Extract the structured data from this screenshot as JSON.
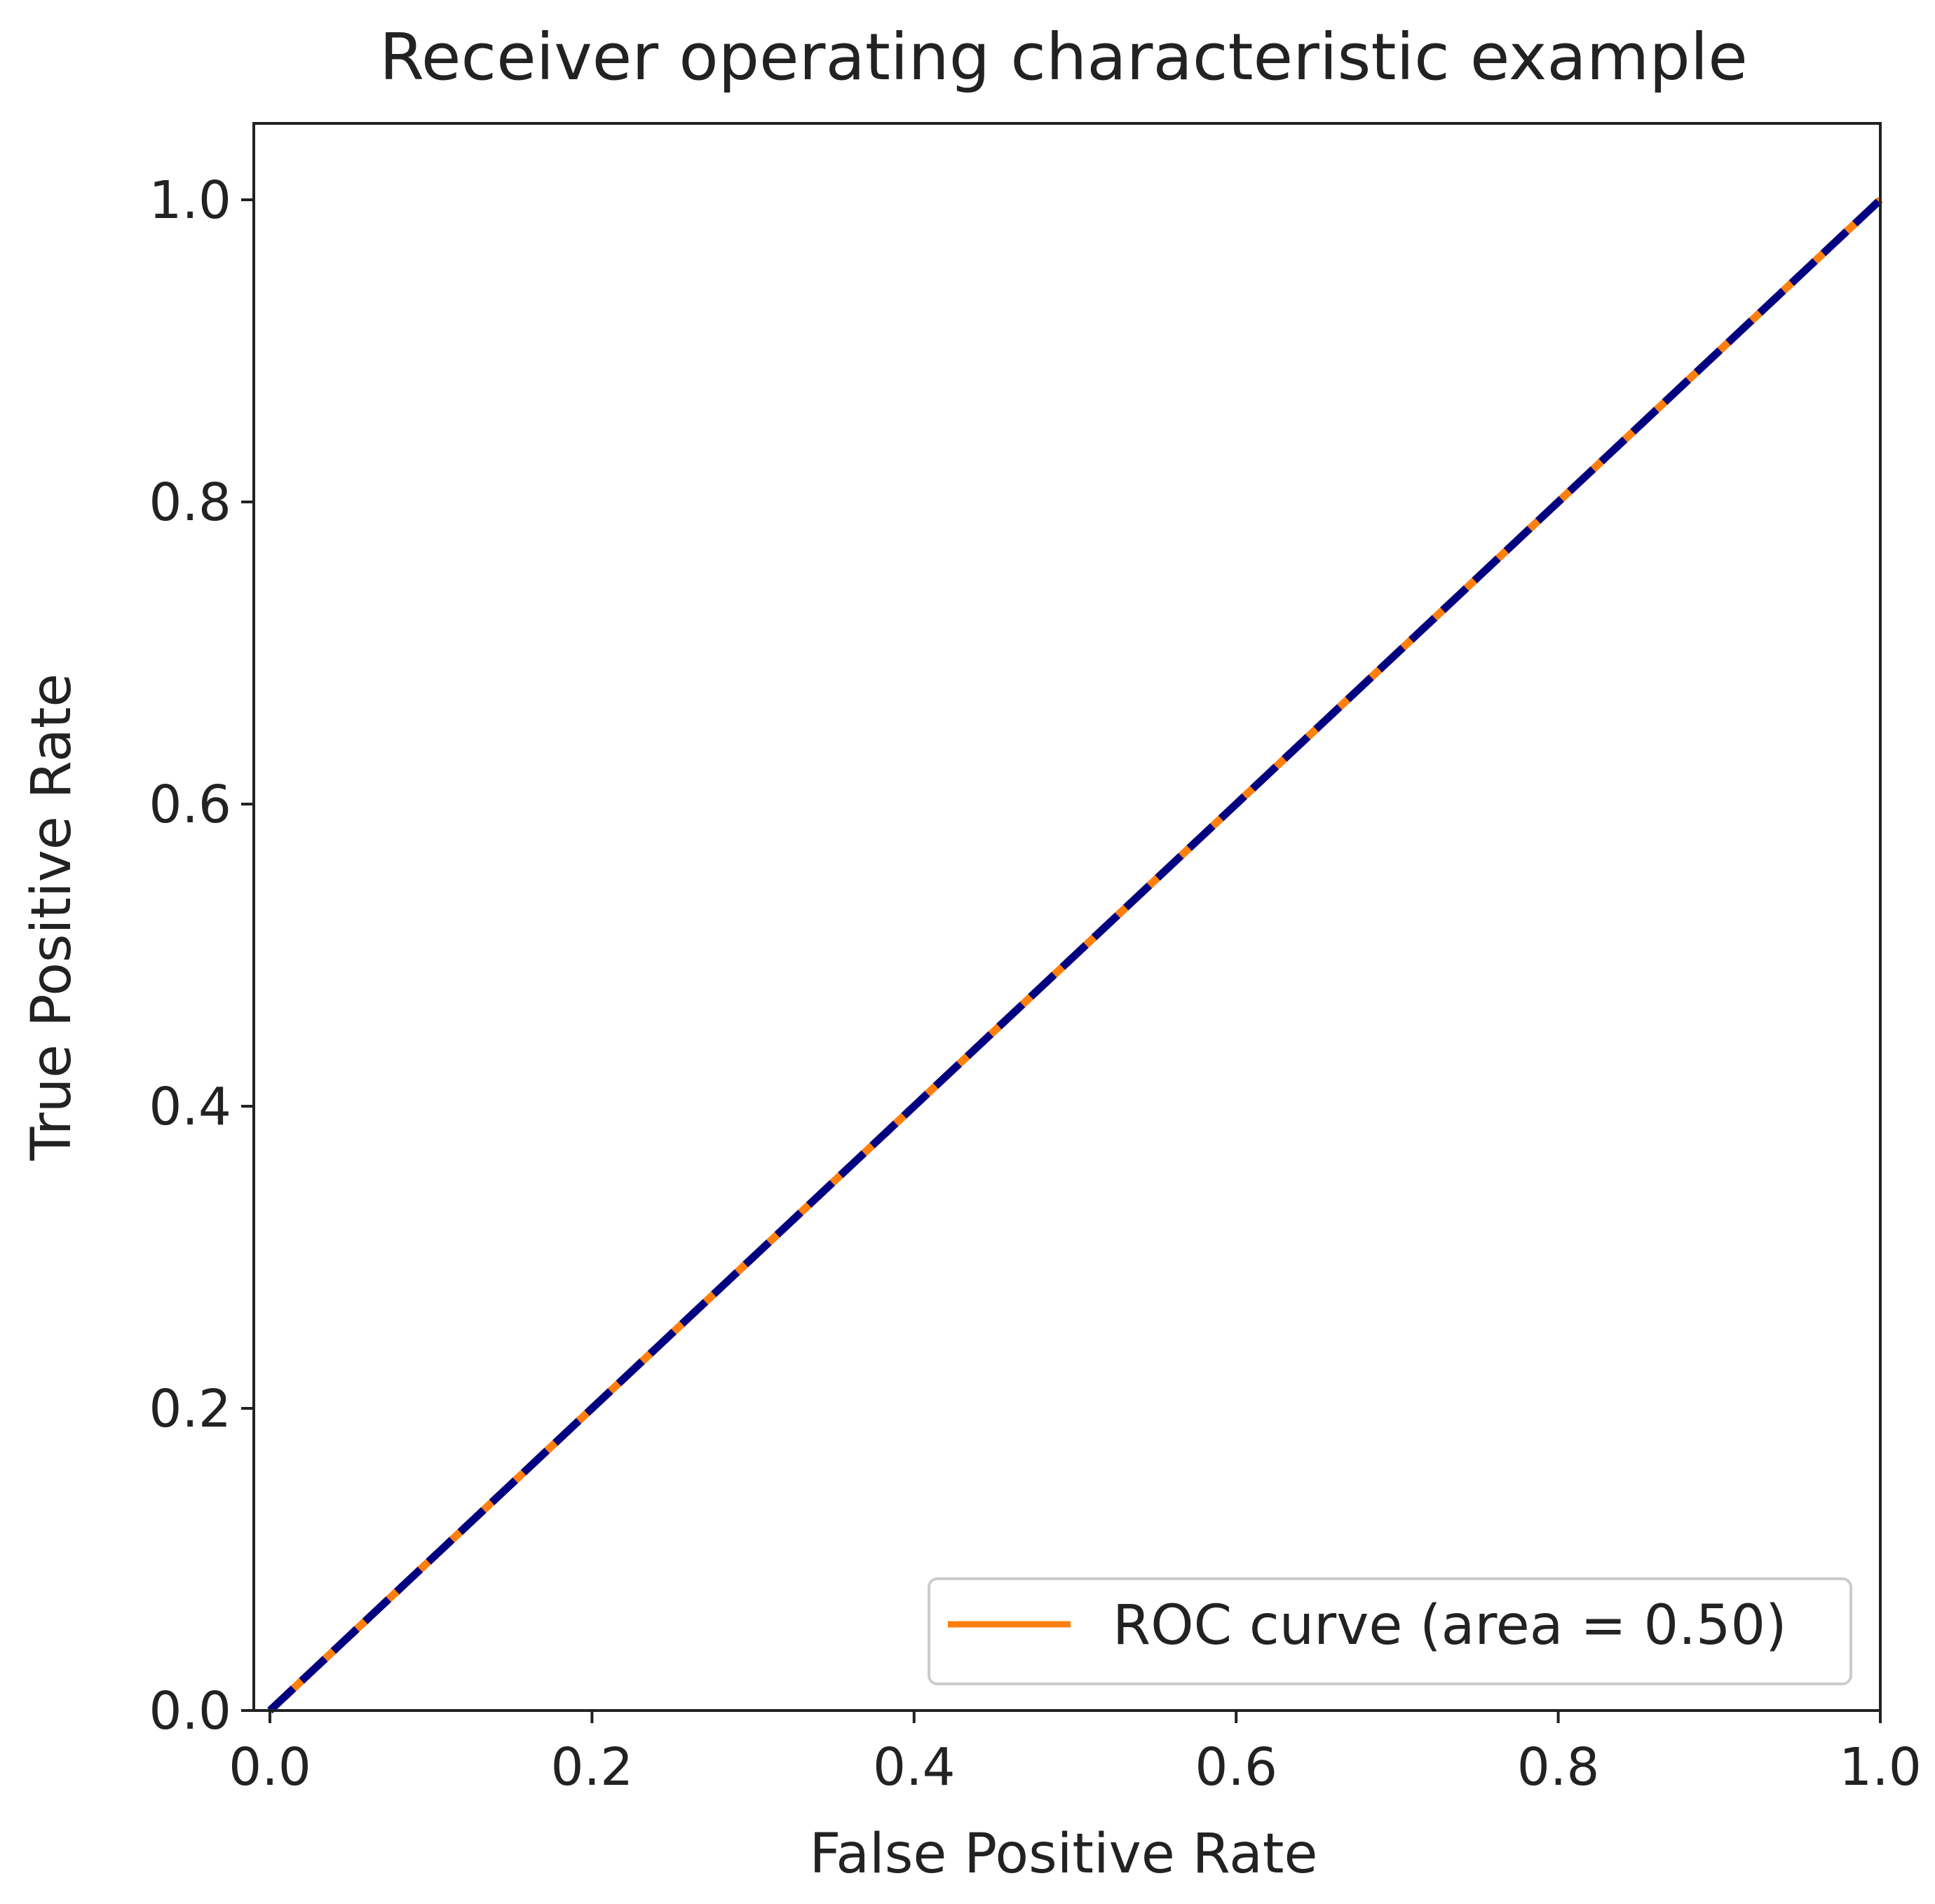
{
  "chart_data": {
    "type": "line",
    "title": "Receiver operating characteristic example",
    "xlabel": "False Positive Rate",
    "ylabel": "True Positive Rate",
    "xlim": [
      0.0,
      1.0
    ],
    "ylim": [
      0.0,
      1.05
    ],
    "xticks": [
      "0.0",
      "0.2",
      "0.4",
      "0.6",
      "0.8",
      "1.0"
    ],
    "yticks": [
      "0.0",
      "0.2",
      "0.4",
      "0.6",
      "0.8",
      "1.0"
    ],
    "grid": false,
    "legend_position": "lower right",
    "series": [
      {
        "name": "ROC curve (area = 0.50)",
        "color": "#ff7f0e",
        "style": "solid",
        "x": [
          0.0,
          1.0
        ],
        "y": [
          0.0,
          1.0
        ]
      },
      {
        "color": "#000080",
        "style": "dashed",
        "x": [
          0.0,
          1.0
        ],
        "y": [
          0.0,
          1.0
        ]
      }
    ]
  }
}
